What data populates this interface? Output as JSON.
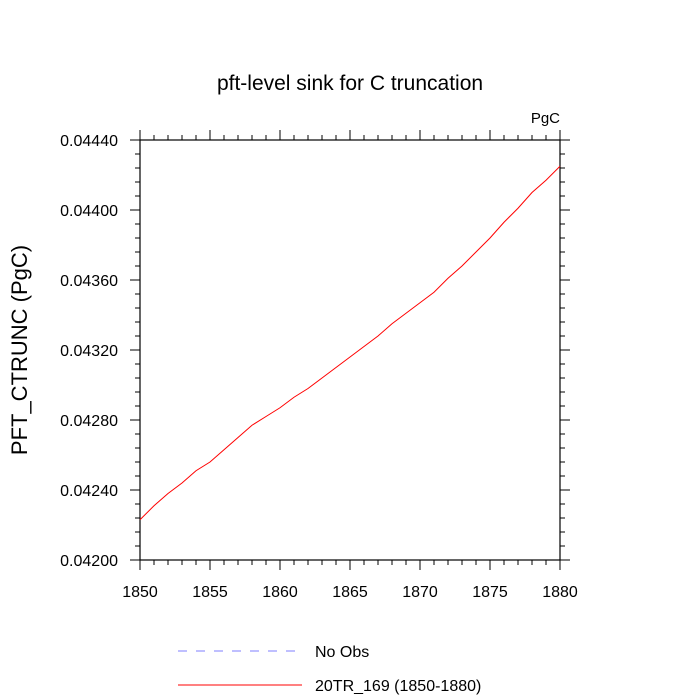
{
  "chart_data": {
    "type": "line",
    "title": "pft-level sink for C truncation",
    "subtitle_right": "PgC",
    "xlabel": "",
    "ylabel": "PFT_CTRUNC  (PgC)",
    "xlim": [
      1850,
      1880
    ],
    "ylim": [
      0.042,
      0.0444
    ],
    "x_ticks": [
      "1850",
      "1855",
      "1860",
      "1865",
      "1870",
      "1875",
      "1880"
    ],
    "y_ticks": [
      "0.04200",
      "0.04240",
      "0.04280",
      "0.04320",
      "0.04360",
      "0.04400",
      "0.04440"
    ],
    "grid": false,
    "legend_position": "bottom",
    "series": [
      {
        "name": "No Obs",
        "color": "#7f7fff",
        "style": "dashed",
        "x": [],
        "y": []
      },
      {
        "name": "20TR_169 (1850-1880)",
        "color": "#ff0000",
        "style": "solid",
        "x": [
          1850,
          1851,
          1852,
          1853,
          1854,
          1855,
          1856,
          1857,
          1858,
          1859,
          1860,
          1861,
          1862,
          1863,
          1864,
          1865,
          1866,
          1867,
          1868,
          1869,
          1870,
          1871,
          1872,
          1873,
          1874,
          1875,
          1876,
          1877,
          1878,
          1879,
          1880
        ],
        "y": [
          0.04223,
          0.04231,
          0.04238,
          0.04244,
          0.04251,
          0.04256,
          0.04263,
          0.0427,
          0.04277,
          0.04282,
          0.04287,
          0.04293,
          0.04298,
          0.04304,
          0.0431,
          0.04316,
          0.04322,
          0.04328,
          0.04335,
          0.04341,
          0.04347,
          0.04353,
          0.04361,
          0.04368,
          0.04376,
          0.04384,
          0.04393,
          0.04401,
          0.0441,
          0.04417,
          0.04425
        ]
      }
    ]
  }
}
